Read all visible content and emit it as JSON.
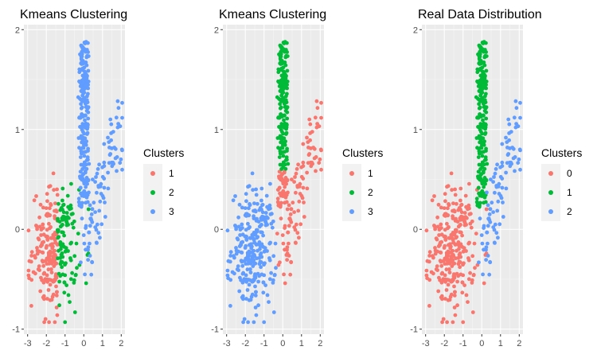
{
  "chart_data": [
    {
      "type": "scatter",
      "title": "Kmeans Clustering",
      "xlabel": "",
      "ylabel": "",
      "xlim": [
        -3.2,
        2.2
      ],
      "ylim": [
        -1.05,
        2.05
      ],
      "x_ticks": [
        "-3",
        "-2",
        "-1",
        "0",
        "1",
        "2"
      ],
      "y_ticks": [
        "-1",
        "0",
        "1",
        "2"
      ],
      "grid": true,
      "legend": {
        "title": "Clusters",
        "position": "right",
        "entries": [
          "1",
          "2",
          "3"
        ]
      },
      "series": [
        {
          "name": "1",
          "color": "#F8766D",
          "summary": {
            "n": 110,
            "x_range": [
              -2.9,
              -1.3
            ],
            "y_range": [
              -0.92,
              0.48
            ]
          }
        },
        {
          "name": "2",
          "color": "#00BA38",
          "summary": {
            "n": 110,
            "x_range": [
              -1.5,
              -0.1
            ],
            "y_range": [
              -0.88,
              0.35
            ]
          }
        },
        {
          "name": "3",
          "color": "#619CFF",
          "summary": {
            "n": 330,
            "x_range": [
              -0.4,
              2.0
            ],
            "y_range": [
              -0.3,
              1.88
            ]
          }
        }
      ]
    },
    {
      "type": "scatter",
      "title": "Kmeans Clustering",
      "xlabel": "",
      "ylabel": "",
      "xlim": [
        -3.2,
        2.2
      ],
      "ylim": [
        -1.05,
        2.05
      ],
      "x_ticks": [
        "-3",
        "-2",
        "-1",
        "0",
        "1",
        "2"
      ],
      "y_ticks": [
        "-1",
        "0",
        "1",
        "2"
      ],
      "grid": true,
      "legend": {
        "title": "Clusters",
        "position": "right",
        "entries": [
          "1",
          "2",
          "3"
        ]
      },
      "series": [
        {
          "name": "1",
          "color": "#F8766D",
          "summary": {
            "n": 170,
            "x_range": [
              -0.5,
              2.0
            ],
            "y_range": [
              -0.3,
              1.2
            ]
          }
        },
        {
          "name": "2",
          "color": "#00BA38",
          "summary": {
            "n": 240,
            "x_range": [
              -0.2,
              0.3
            ],
            "y_range": [
              0.25,
              1.88
            ]
          }
        },
        {
          "name": "3",
          "color": "#619CFF",
          "summary": {
            "n": 220,
            "x_range": [
              -2.9,
              -0.2
            ],
            "y_range": [
              -0.92,
              0.48
            ]
          }
        }
      ]
    },
    {
      "type": "scatter",
      "title": "Real Data Distribution",
      "xlabel": "",
      "ylabel": "",
      "xlim": [
        -3.2,
        2.2
      ],
      "ylim": [
        -1.05,
        2.05
      ],
      "x_ticks": [
        "-3",
        "-2",
        "-1",
        "0",
        "1",
        "2"
      ],
      "y_ticks": [
        "-1",
        "0",
        "1",
        "2"
      ],
      "grid": true,
      "legend": {
        "title": "Clusters",
        "position": "right",
        "entries": [
          "0",
          "1",
          "2"
        ]
      },
      "series": [
        {
          "name": "0",
          "color": "#F8766D",
          "summary": {
            "n": 280,
            "x_range": [
              -2.9,
              0.3
            ],
            "y_range": [
              -0.92,
              0.48
            ]
          }
        },
        {
          "name": "1",
          "color": "#00BA38",
          "summary": {
            "n": 240,
            "x_range": [
              -0.3,
              0.3
            ],
            "y_range": [
              0.15,
              1.88
            ]
          }
        },
        {
          "name": "2",
          "color": "#619CFF",
          "summary": {
            "n": 100,
            "x_range": [
              0.0,
              2.0
            ],
            "y_range": [
              -0.3,
              1.2
            ]
          }
        }
      ]
    }
  ]
}
